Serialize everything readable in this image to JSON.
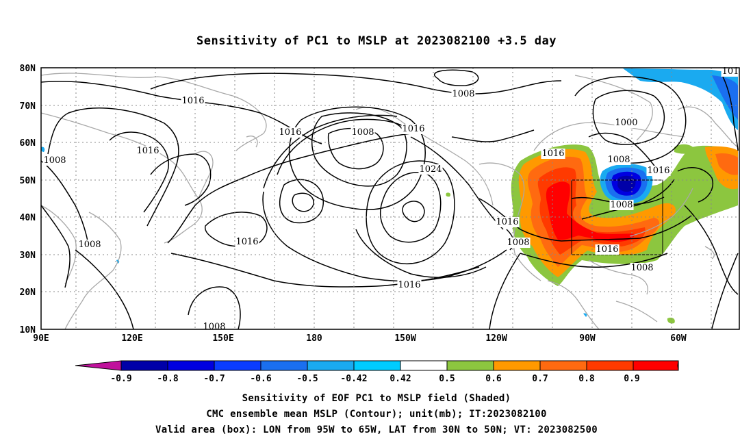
{
  "title": "Sensitivity of PC1 to MSLP at 2023082100 +3.5 day",
  "map": {
    "lon_range": [
      "90E",
      "50W"
    ],
    "lat_range": [
      "10N",
      "80N"
    ],
    "x_ticks": [
      "90E",
      "120E",
      "150E",
      "180",
      "150W",
      "120W",
      "90W",
      "60W"
    ],
    "y_ticks": [
      "80N",
      "70N",
      "60N",
      "50N",
      "40N",
      "30N",
      "20N",
      "10N"
    ],
    "grid": "dotted",
    "contour_labels": [
      "1008",
      "1016",
      "1016",
      "1016",
      "1008",
      "1016",
      "1024",
      "1008",
      "1000",
      "1008",
      "1016",
      "1008",
      "1016",
      "1016",
      "1008",
      "1016",
      "1008",
      "1016",
      "1008",
      "1008",
      "1016",
      "101"
    ],
    "valid_box": {
      "lon_from": "95W",
      "lon_to": "65W",
      "lat_from": "30N",
      "lat_to": "50N"
    }
  },
  "colorbar": {
    "labels": [
      "-0.9",
      "-0.8",
      "-0.7",
      "-0.6",
      "-0.5",
      "-0.42",
      "0.42",
      "0.5",
      "0.6",
      "0.7",
      "0.8",
      "0.9"
    ],
    "colors": [
      "#c0129c",
      "#0000a8",
      "#0000e0",
      "#0a3cff",
      "#1a6ff0",
      "#1aaaf0",
      "#00ccff",
      "#ffffff",
      "#8cc63f",
      "#ff9900",
      "#ff6a10",
      "#ff3a00",
      "#ff0000",
      "#ff99cc"
    ]
  },
  "captions": [
    "Sensitivity of EOF PC1 to MSLP field (Shaded)",
    "CMC ensemble mean MSLP (Contour); unit(mb); IT:2023082100",
    "Valid area (box): LON from 95W to 65W, LAT from 30N to 50N; VT: 2023082500"
  ]
}
